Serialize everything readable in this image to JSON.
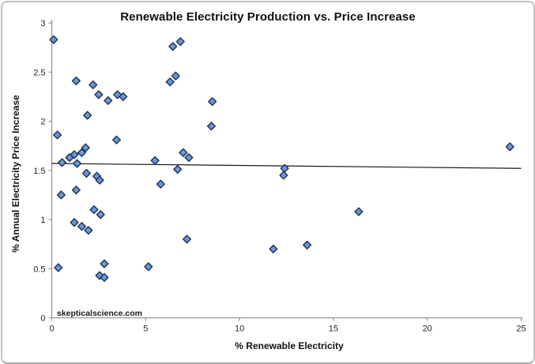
{
  "watermark": "skepticalscience.com",
  "chart_data": {
    "type": "scatter",
    "title": "Renewable Electricity Production vs. Price Increase",
    "xlabel": "% Renewable Electricity",
    "ylabel": "% Annual Electricity Price Increase",
    "xlim": [
      0,
      25
    ],
    "ylim": [
      0,
      3
    ],
    "x_ticks": [
      0,
      5,
      10,
      15,
      20,
      25
    ],
    "y_ticks": [
      0,
      0.5,
      1,
      1.5,
      2,
      2.5,
      3
    ],
    "grid": false,
    "legend": null,
    "axis_color": "#969696",
    "marker": {
      "shape": "diamond",
      "fill": "#6f96ce",
      "stroke": "#1f3864",
      "size": 4.8
    },
    "trend_line": {
      "x": [
        0,
        25
      ],
      "y": [
        1.57,
        1.52
      ],
      "color": "#1a1a1a"
    },
    "points": [
      [
        0.1,
        2.83
      ],
      [
        0.3,
        1.86
      ],
      [
        0.35,
        0.51
      ],
      [
        0.5,
        1.25
      ],
      [
        0.55,
        1.58
      ],
      [
        0.95,
        1.63
      ],
      [
        1.2,
        1.66
      ],
      [
        1.2,
        0.97
      ],
      [
        1.3,
        1.3
      ],
      [
        1.3,
        2.41
      ],
      [
        1.35,
        1.57
      ],
      [
        1.6,
        1.68
      ],
      [
        1.6,
        0.93
      ],
      [
        1.8,
        1.73
      ],
      [
        1.85,
        1.47
      ],
      [
        1.9,
        2.06
      ],
      [
        1.95,
        0.89
      ],
      [
        2.2,
        2.37
      ],
      [
        2.25,
        1.1
      ],
      [
        2.4,
        1.44
      ],
      [
        2.5,
        2.27
      ],
      [
        2.55,
        0.43
      ],
      [
        2.55,
        1.4
      ],
      [
        2.6,
        1.05
      ],
      [
        2.8,
        0.55
      ],
      [
        2.8,
        0.41
      ],
      [
        3.0,
        2.21
      ],
      [
        3.45,
        1.81
      ],
      [
        3.5,
        2.27
      ],
      [
        3.8,
        2.25
      ],
      [
        5.15,
        0.52
      ],
      [
        5.5,
        1.6
      ],
      [
        5.8,
        1.36
      ],
      [
        6.3,
        2.4
      ],
      [
        6.45,
        2.76
      ],
      [
        6.6,
        2.46
      ],
      [
        6.7,
        1.51
      ],
      [
        6.85,
        2.81
      ],
      [
        7.0,
        1.68
      ],
      [
        7.2,
        0.8
      ],
      [
        7.3,
        1.63
      ],
      [
        8.5,
        1.95
      ],
      [
        8.55,
        2.2
      ],
      [
        11.8,
        0.7
      ],
      [
        12.35,
        1.45
      ],
      [
        12.4,
        1.52
      ],
      [
        13.6,
        0.74
      ],
      [
        16.35,
        1.08
      ],
      [
        24.4,
        1.74
      ]
    ]
  }
}
